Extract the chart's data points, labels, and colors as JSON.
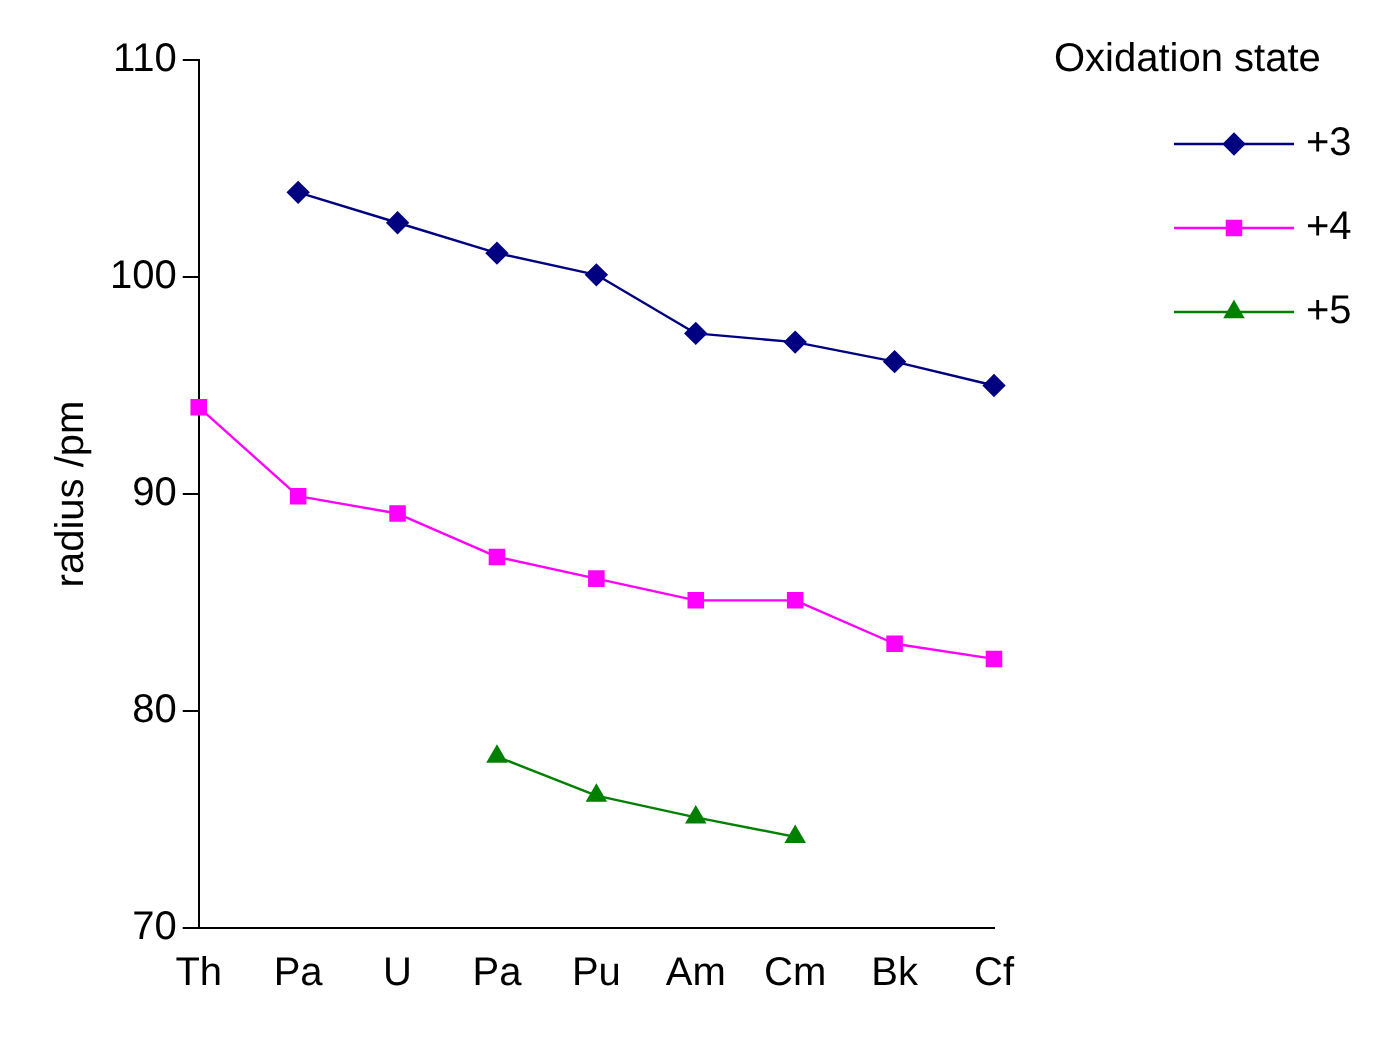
{
  "chart_data": {
    "type": "line",
    "ylabel": "radius /pm",
    "legend_title": "Oxidation state",
    "legend": "top right",
    "grid": false,
    "categories": [
      "Th",
      "Pa",
      "U",
      "Pa",
      "Pu",
      "Am",
      "Cm",
      "Bk",
      "Cf"
    ],
    "ylim": [
      70,
      110
    ],
    "yticks": [
      70,
      80,
      90,
      100,
      110
    ],
    "series": [
      {
        "name": "+3",
        "color": "#000080",
        "marker": "diamond",
        "values": [
          null,
          103.9,
          102.5,
          101.1,
          100.1,
          97.4,
          97.0,
          96.1,
          95.0
        ]
      },
      {
        "name": "+4",
        "color": "#ff00ff",
        "marker": "square",
        "values": [
          94.0,
          89.9,
          89.1,
          87.1,
          86.1,
          85.1,
          85.1,
          83.1,
          82.4
        ]
      },
      {
        "name": "+5",
        "color": "#008000",
        "marker": "triangle",
        "values": [
          null,
          null,
          null,
          77.9,
          76.1,
          75.1,
          74.2,
          null,
          null
        ]
      }
    ]
  }
}
